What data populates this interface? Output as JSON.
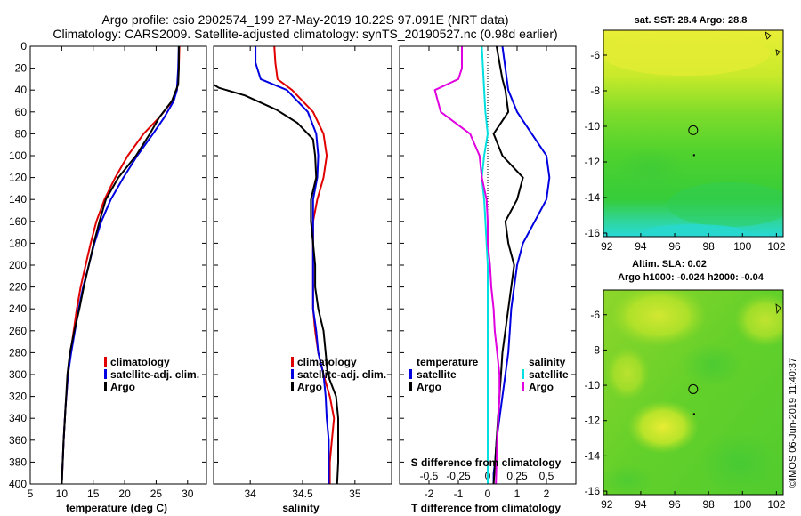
{
  "title": {
    "line1": "Argo profile: csio 2902574_199 27-May-2019 10.22S 97.091E (NRT data)",
    "line2": "Climatology: CARS2009. Satellite-adjusted climatology: synTS_20190527.nc (0.98d earlier)"
  },
  "colors": {
    "red": "#e00000",
    "blue": "#0000e0",
    "black": "#000000",
    "magenta": "#e000e0",
    "cyan": "#00e0e0"
  },
  "chart_data": [
    {
      "type": "line",
      "id": "temperature",
      "xlabel": "temperature (deg C)",
      "ylabel": "",
      "xlim": [
        5,
        33
      ],
      "ylim": [
        400,
        0
      ],
      "xticks": [
        "5",
        "10",
        "15",
        "20",
        "25",
        "30"
      ],
      "xtick_values": [
        5,
        10,
        15,
        20,
        25,
        30
      ],
      "yticks": [
        "0",
        "20",
        "40",
        "60",
        "80",
        "100",
        "120",
        "140",
        "160",
        "180",
        "200",
        "220",
        "240",
        "260",
        "280",
        "300",
        "320",
        "340",
        "360",
        "380",
        "400"
      ],
      "ytick_values": [
        0,
        20,
        40,
        60,
        80,
        100,
        120,
        140,
        160,
        180,
        200,
        220,
        240,
        260,
        280,
        300,
        320,
        340,
        360,
        380,
        400
      ],
      "legend": [
        "climatology",
        "satellite-adj. clim.",
        "Argo"
      ],
      "legend_position": "lower-right",
      "series": [
        {
          "name": "climatology",
          "color": "red",
          "x": [
            28.7,
            28.6,
            28.3,
            27.6,
            25.5,
            23.0,
            20.5,
            18.5,
            16.8,
            15.5,
            14.6,
            13.8,
            13.0,
            12.4,
            11.9,
            11.4,
            11.0,
            10.6,
            10.3,
            10.0
          ],
          "y": [
            0,
            20,
            40,
            50,
            65,
            80,
            100,
            120,
            140,
            160,
            180,
            200,
            220,
            240,
            260,
            280,
            300,
            330,
            360,
            400
          ]
        },
        {
          "name": "satellite-adj. clim.",
          "color": "blue",
          "x": [
            28.6,
            28.5,
            28.3,
            27.8,
            26.3,
            24.5,
            22.0,
            19.8,
            17.8,
            16.3,
            15.2,
            14.3,
            13.4,
            12.7,
            12.1,
            11.5,
            11.0,
            10.6,
            10.3,
            10.0
          ],
          "y": [
            0,
            20,
            40,
            50,
            65,
            80,
            100,
            120,
            140,
            160,
            180,
            200,
            220,
            240,
            260,
            280,
            300,
            330,
            360,
            400
          ]
        },
        {
          "name": "Argo",
          "color": "black",
          "x": [
            28.6,
            28.6,
            28.5,
            27.5,
            25.5,
            24.0,
            21.8,
            19.0,
            17.0,
            16.0,
            15.1,
            14.3,
            13.5,
            12.8,
            12.0,
            11.3,
            10.9,
            10.6,
            10.3,
            10.0
          ],
          "y": [
            0,
            20,
            35,
            50,
            65,
            80,
            100,
            120,
            140,
            160,
            180,
            200,
            220,
            240,
            260,
            280,
            300,
            330,
            360,
            400
          ]
        }
      ]
    },
    {
      "type": "line",
      "id": "salinity",
      "xlabel": "salinity",
      "xlim": [
        33.65,
        35.35
      ],
      "ylim": [
        400,
        0
      ],
      "xticks": [
        "34",
        "34.5",
        "35"
      ],
      "xtick_values": [
        34,
        34.5,
        35
      ],
      "legend": [
        "climatology",
        "satellite-adj. clim.",
        "Argo"
      ],
      "legend_position": "lower-right",
      "series": [
        {
          "name": "climatology",
          "color": "red",
          "x": [
            34.23,
            34.24,
            34.26,
            34.4,
            34.6,
            34.7,
            34.73,
            34.7,
            34.64,
            34.6,
            34.6,
            34.6,
            34.6,
            34.6,
            34.62,
            34.65,
            34.7,
            34.76,
            34.8,
            34.78,
            34.76,
            34.76
          ],
          "y": [
            0,
            15,
            30,
            40,
            60,
            80,
            100,
            120,
            140,
            160,
            180,
            200,
            220,
            240,
            260,
            280,
            300,
            320,
            340,
            360,
            380,
            400
          ]
        },
        {
          "name": "satellite-adj. clim.",
          "color": "blue",
          "x": [
            34.05,
            34.05,
            34.1,
            34.35,
            34.55,
            34.63,
            34.65,
            34.64,
            34.6,
            34.6,
            34.6,
            34.6,
            34.6,
            34.6,
            34.63,
            34.65,
            34.7,
            34.72,
            34.73,
            34.75,
            34.75,
            34.75
          ],
          "y": [
            0,
            15,
            30,
            40,
            60,
            80,
            100,
            120,
            140,
            160,
            180,
            200,
            220,
            240,
            260,
            280,
            300,
            320,
            340,
            360,
            380,
            400
          ]
        },
        {
          "name": "Argo",
          "color": "black",
          "x": [
            33.65,
            33.7,
            33.95,
            34.25,
            34.45,
            34.6,
            34.62,
            34.63,
            34.58,
            34.58,
            34.6,
            34.62,
            34.62,
            34.65,
            34.7,
            34.72,
            34.74,
            34.82,
            34.84,
            34.84,
            34.84,
            34.83
          ],
          "y": [
            35,
            38,
            45,
            58,
            70,
            85,
            100,
            120,
            140,
            160,
            180,
            200,
            220,
            240,
            260,
            280,
            300,
            320,
            340,
            360,
            380,
            400
          ]
        }
      ]
    },
    {
      "type": "line",
      "id": "differences",
      "xlabel": "T difference from climatology",
      "xlabel2": "S difference from climatology",
      "xlim": [
        -3,
        3
      ],
      "xlim2": [
        -0.75,
        0.75
      ],
      "ylim": [
        400,
        0
      ],
      "xticks": [
        "-2",
        "-1",
        "0",
        "1",
        "2"
      ],
      "xtick_values": [
        -2,
        -1,
        0,
        1,
        2
      ],
      "xticks2": [
        "-0.5",
        "-0.25",
        "0",
        "0.25",
        "0.5"
      ],
      "xtick_values2": [
        -0.5,
        -0.25,
        0,
        0.25,
        0.5
      ],
      "legend": [
        "temperature",
        "satellite",
        "Argo",
        "salinity",
        "satellite",
        "Argo"
      ],
      "legend_position": "lower",
      "series": [
        {
          "name": "temperature satellite",
          "color": "blue",
          "x": [
            0.5,
            0.6,
            0.7,
            1.0,
            1.5,
            2.0,
            2.1,
            2.0,
            1.6,
            1.2,
            1.0,
            0.9,
            0.8,
            0.75,
            0.7,
            0.6,
            0.5,
            0.4,
            0.3,
            0.25,
            0.2,
            0.2
          ],
          "y": [
            0,
            20,
            40,
            60,
            80,
            100,
            120,
            140,
            160,
            180,
            200,
            220,
            240,
            260,
            280,
            300,
            320,
            340,
            360,
            380,
            390,
            400
          ]
        },
        {
          "name": "temperature Argo",
          "color": "black",
          "x": [
            0.3,
            0.5,
            0.6,
            0.7,
            0.2,
            0.5,
            1.2,
            1.0,
            0.6,
            0.7,
            0.9,
            0.8,
            0.7,
            0.6,
            0.5,
            0.45,
            0.4,
            0.35,
            0.3,
            0.25,
            0.2
          ],
          "y": [
            0,
            30,
            40,
            60,
            80,
            100,
            120,
            140,
            160,
            180,
            200,
            220,
            240,
            260,
            280,
            300,
            320,
            340,
            360,
            380,
            400
          ]
        },
        {
          "name": "salinity satellite",
          "color": "cyan",
          "x": [
            -0.05,
            -0.04,
            -0.03,
            -0.02,
            0.0,
            -0.03,
            -0.05,
            -0.03,
            -0.02,
            -0.01,
            0.0,
            0.0,
            0.0,
            0.0,
            0.0,
            0.0,
            0.0,
            0.0,
            0.0,
            0.0,
            0.0
          ],
          "y": [
            0,
            20,
            40,
            60,
            80,
            100,
            120,
            140,
            160,
            180,
            200,
            220,
            240,
            260,
            280,
            300,
            320,
            340,
            360,
            380,
            400
          ]
        },
        {
          "name": "salinity Argo",
          "color": "magenta",
          "x": [
            -0.22,
            -0.22,
            -0.25,
            -0.45,
            -0.4,
            -0.15,
            -0.07,
            -0.05,
            -0.01,
            0.0,
            0.0,
            0.02,
            0.03,
            0.05,
            0.06,
            0.08,
            0.1,
            0.1,
            0.09,
            0.08,
            0.07
          ],
          "y": [
            0,
            20,
            30,
            40,
            60,
            80,
            100,
            120,
            140,
            160,
            180,
            200,
            220,
            240,
            260,
            280,
            300,
            320,
            340,
            360,
            400
          ]
        }
      ]
    }
  ],
  "maps": {
    "sst": {
      "title": "sat. SST: 28.4 Argo: 28.8",
      "xticks": [
        "92",
        "94",
        "96",
        "98",
        "100",
        "102"
      ],
      "xtick_values": [
        92,
        94,
        96,
        98,
        100,
        102
      ],
      "yticks": [
        "-6",
        "-8",
        "-10",
        "-12",
        "-14",
        "-16"
      ],
      "ytick_values": [
        -6,
        -8,
        -10,
        -12,
        -14,
        -16
      ]
    },
    "sla": {
      "title1": "Altim. SLA: 0.02",
      "title2": "Argo h1000: -0.024 h2000: -0.04",
      "xticks": [
        "92",
        "94",
        "96",
        "98",
        "100",
        "102"
      ],
      "xtick_values": [
        92,
        94,
        96,
        98,
        100,
        102
      ],
      "yticks": [
        "-6",
        "-8",
        "-10",
        "-12",
        "-14",
        "-16"
      ],
      "ytick_values": [
        -6,
        -8,
        -10,
        -12,
        -14,
        -16
      ]
    },
    "argo_position": {
      "lon": 97.091,
      "lat": -10.22
    }
  },
  "credit": "©IMOS 06-Jun-2019 11:40:37"
}
